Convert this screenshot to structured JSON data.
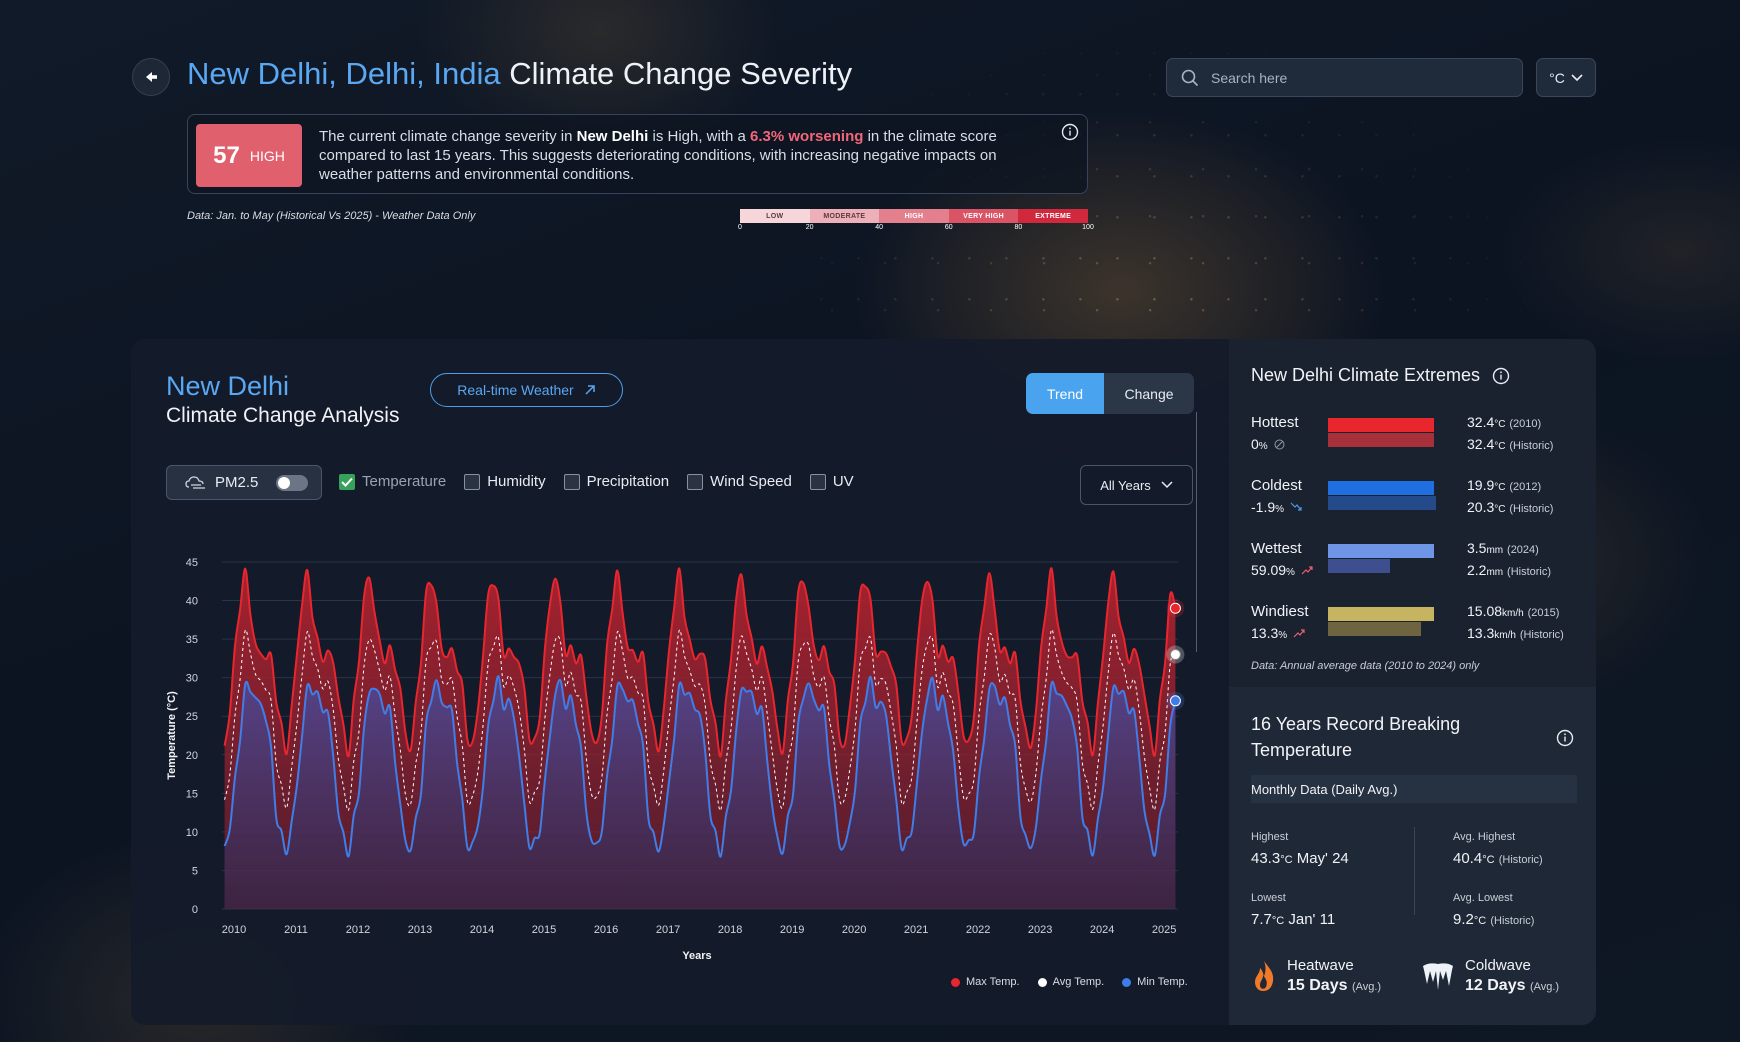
{
  "header": {
    "location": "New Delhi, Delhi, India",
    "title": "Climate Change Severity",
    "search_placeholder": "Search here",
    "unit": "°C"
  },
  "severity": {
    "score": "57",
    "level": "HIGH",
    "text_pre": "The current climate change severity in ",
    "city": "New Delhi",
    "text_mid": " is High, with a ",
    "change": "6.3% worsening",
    "text_post": " in the climate score compared to last 15 years. This suggests deteriorating conditions, with increasing negative impacts on weather patterns and environmental conditions.",
    "data_note": "Data: Jan. to May (Historical Vs 2025) - Weather Data Only",
    "scale_labels": [
      "LOW",
      "MODERATE",
      "HIGH",
      "VERY HIGH",
      "EXTREME"
    ],
    "scale_colors": [
      "#f7d6da",
      "#eeb0b8",
      "#e4808e",
      "#db5466",
      "#d2283e"
    ],
    "scale_ticks": [
      "0",
      "20",
      "40",
      "60",
      "80",
      "100"
    ]
  },
  "analysis": {
    "city": "New Delhi",
    "subtitle": "Climate Change Analysis",
    "realtime_label": "Real-time Weather",
    "tabs": [
      "Trend",
      "Change"
    ],
    "pm_label": "PM2.5",
    "checkboxes": [
      {
        "label": "Temperature",
        "checked": true
      },
      {
        "label": "Humidity",
        "checked": false
      },
      {
        "label": "Precipitation",
        "checked": false
      },
      {
        "label": "Wind Speed",
        "checked": false
      },
      {
        "label": "UV",
        "checked": false
      }
    ],
    "years_label": "All Years",
    "legend": [
      "Max Temp.",
      "Avg Temp.",
      "Min Temp."
    ]
  },
  "chart_data": {
    "type": "area",
    "xlabel": "Years",
    "ylabel": "Temperature (°C)",
    "ylim": [
      0,
      45
    ],
    "yticks": [
      0,
      5,
      10,
      15,
      20,
      25,
      30,
      35,
      40,
      45
    ],
    "x": [
      "2010",
      "2011",
      "2012",
      "2013",
      "2014",
      "2015",
      "2016",
      "2017",
      "2018",
      "2019",
      "2020",
      "2021",
      "2022",
      "2023",
      "2024",
      "2025"
    ],
    "month_profile": {
      "max": [
        21,
        26,
        33,
        40,
        43,
        39,
        34,
        33,
        33,
        32,
        28,
        23
      ],
      "avg": [
        14,
        18,
        24,
        31,
        35,
        34,
        30,
        29.5,
        29,
        26,
        20,
        15
      ],
      "min": [
        8,
        11,
        16,
        23,
        28,
        29,
        27,
        26.5,
        25,
        20,
        13,
        9
      ]
    },
    "series": [
      {
        "name": "Max Temp.",
        "color": "#e0303c"
      },
      {
        "name": "Avg Temp.",
        "color": "#ffffff"
      },
      {
        "name": "Min Temp.",
        "color": "#3f7de8"
      }
    ],
    "end_values_2025_may": {
      "max": 39,
      "avg": 33,
      "min": 27
    }
  },
  "extremes": {
    "title": "New Delhi Climate Extremes",
    "rows": [
      {
        "name": "Hottest",
        "pct": "0",
        "pct_unit": "%",
        "trend": "neutral",
        "val1": "32.4",
        "unit": "°C",
        "year1": "(2010)",
        "val2": "32.4",
        "year2": "(Historic)",
        "c1": "#e8262e",
        "c2": "#a8303a",
        "w1": 106,
        "w2": 106
      },
      {
        "name": "Coldest",
        "pct": "-1.9",
        "pct_unit": "%",
        "trend": "down",
        "val1": "19.9",
        "unit": "°C",
        "year1": "(2012)",
        "val2": "20.3",
        "year2": "(Historic)",
        "c1": "#1f6fe0",
        "c2": "#254a8a",
        "w1": 106,
        "w2": 108
      },
      {
        "name": "Wettest",
        "pct": "59.09",
        "pct_unit": "%",
        "trend": "up",
        "val1": "3.5",
        "unit": "mm",
        "year1": "(2024)",
        "val2": "2.2",
        "year2": "(Historic)",
        "c1": "#6f96e6",
        "c2": "#3e4f8f",
        "w1": 106,
        "w2": 62
      },
      {
        "name": "Windiest",
        "pct": "13.3",
        "pct_unit": "%",
        "trend": "up",
        "val1": "15.08",
        "unit": "km/h",
        "year1": "(2015)",
        "val2": "13.3",
        "year2": "(Historic)",
        "c1": "#c6b461",
        "c2": "#6e6540",
        "w1": 106,
        "w2": 93
      }
    ],
    "note": "Data: Annual average data (2010 to 2024) only"
  },
  "records": {
    "title": "16 Years Record Breaking Temperature",
    "sub": "Monthly Data (Daily Avg.)",
    "highest_label": "Highest",
    "highest_val": "43.3",
    "highest_unit": "°C",
    "highest_when": "May' 24",
    "avg_highest_label": "Avg. Highest",
    "avg_highest_val": "40.4",
    "avg_highest_unit": "°C",
    "avg_highest_note": "(Historic)",
    "lowest_label": "Lowest",
    "lowest_val": "7.7",
    "lowest_unit": "°C",
    "lowest_when": "Jan' 11",
    "avg_lowest_label": "Avg. Lowest",
    "avg_lowest_val": "9.2",
    "avg_lowest_unit": "°C",
    "avg_lowest_note": "(Historic)",
    "heatwave_label": "Heatwave",
    "heatwave_val": "15 Days",
    "heatwave_note": "(Avg.)",
    "coldwave_label": "Coldwave",
    "coldwave_val": "12 Days",
    "coldwave_note": "(Avg.)"
  }
}
